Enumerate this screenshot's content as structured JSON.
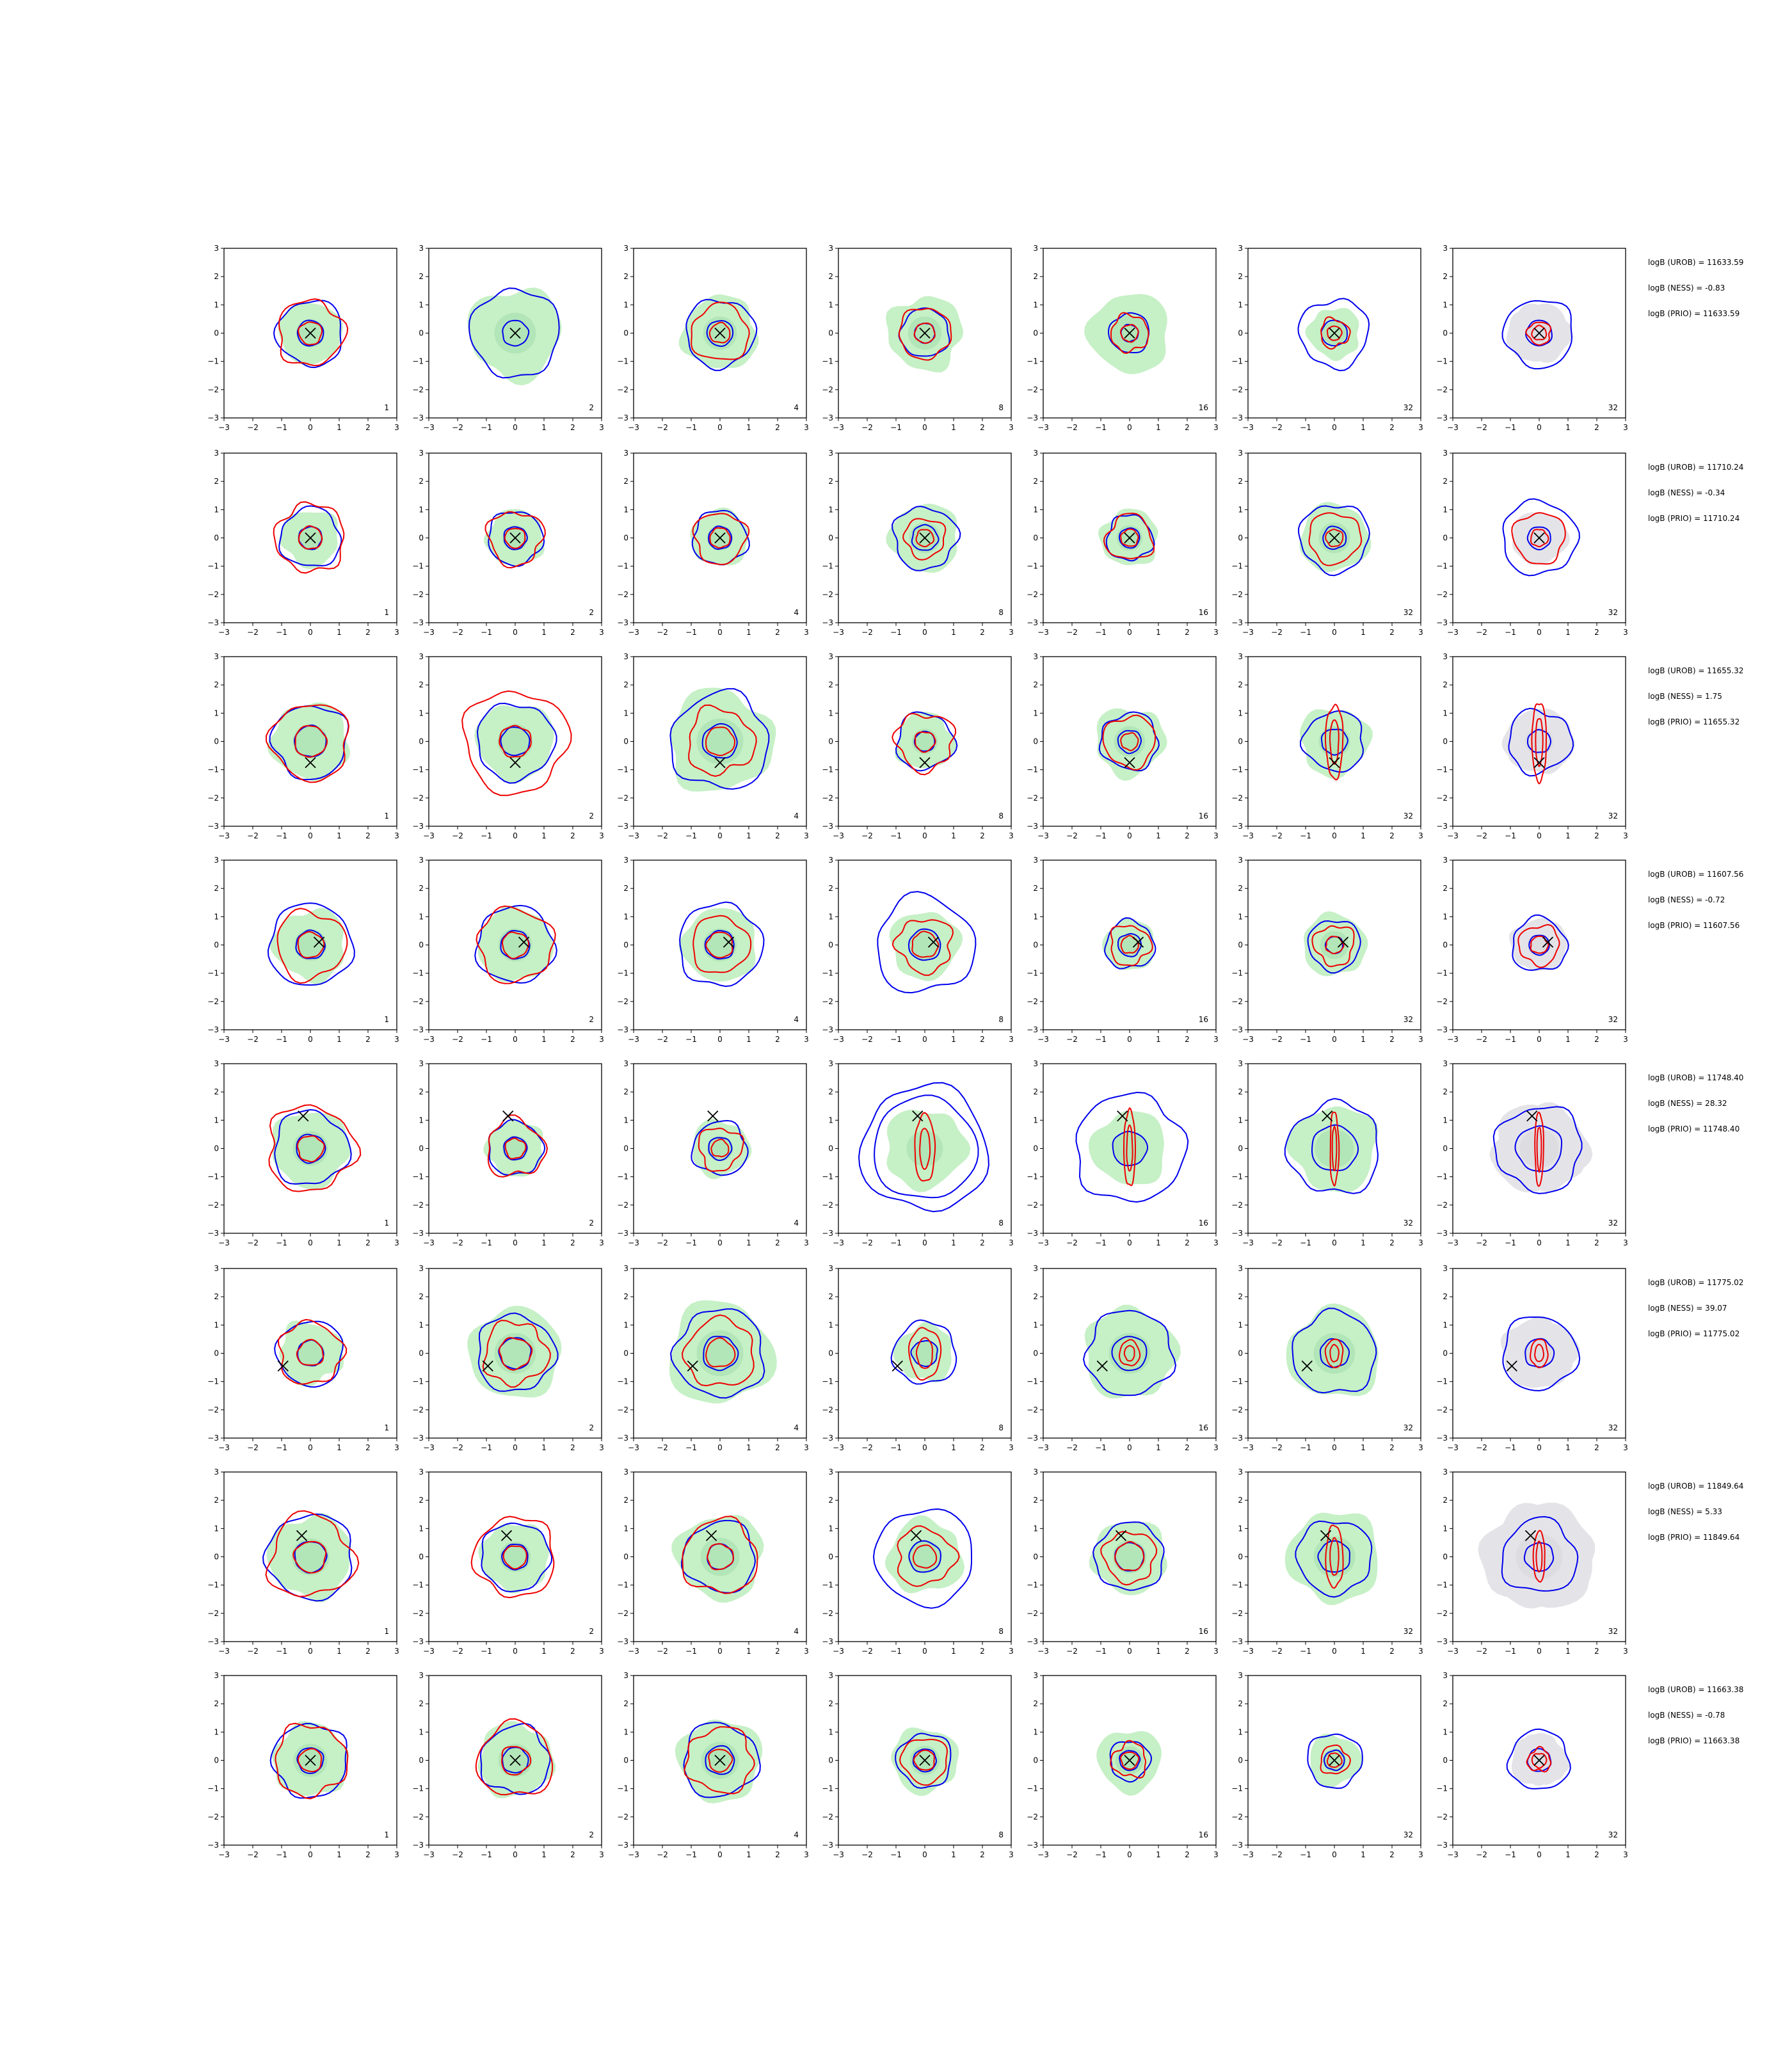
{
  "chart_data": {
    "type": "contour-grid",
    "rows": 8,
    "cols": 7,
    "xlim": [
      -3,
      3
    ],
    "ylim": [
      -3,
      3
    ],
    "xticks": [
      -3,
      -2,
      -1,
      0,
      1,
      2,
      3
    ],
    "yticks": [
      -3,
      -2,
      -1,
      0,
      1,
      2,
      3
    ],
    "column_labels": [
      "1",
      "2",
      "4",
      "8",
      "16",
      "32",
      "32"
    ],
    "colors": {
      "fill_green": "#c6f0c6",
      "fill_green_dark": "#a9dfb0",
      "fill_grey": "#e4e4e8",
      "line_blue": "#0000ee",
      "line_red": "#ee0000",
      "marker": "#000000",
      "axes": "#000000"
    },
    "rows_data": [
      {
        "annotations": [
          "logB (UROB) = 11633.59",
          "logB (NESS) = -0.83",
          "logB (PRIO) = 11633.59"
        ],
        "marker": [
          0,
          0
        ],
        "panels": [
          {
            "fill": 1.1,
            "blue": [
              1.15,
              0.45
            ],
            "red": [
              1.15,
              0.4
            ]
          },
          {
            "fill": 1.6,
            "blue": [
              1.55,
              0.45
            ],
            "red": []
          },
          {
            "fill": 1.3,
            "blue": [
              1.2,
              0.45
            ],
            "red": [
              1.0,
              0.35
            ]
          },
          {
            "fill": 1.3,
            "blue": [
              0.85,
              0.35
            ],
            "red": [
              0.9,
              0.35
            ]
          },
          {
            "fill": 1.4,
            "blue": [
              0.7,
              0.3
            ],
            "red": [
              0.65,
              0.3
            ]
          },
          {
            "fill": 0.9,
            "blue": [
              1.2,
              0.45
            ],
            "red": [
              0.5,
              0.25
            ]
          },
          {
            "fill": 1.0,
            "blue": [
              1.2,
              0.45
            ],
            "red": [
              0.4,
              0.25
            ],
            "grey": true
          }
        ]
      },
      {
        "annotations": [
          "logB (UROB) = 11710.24",
          "logB (NESS) = -0.34",
          "logB (PRIO) = 11710.24"
        ],
        "marker": [
          0,
          0
        ],
        "panels": [
          {
            "fill": 1.0,
            "blue": [
              1.05,
              0.4
            ],
            "red": [
              1.2,
              0.4
            ]
          },
          {
            "fill": 1.0,
            "blue": [
              0.95,
              0.4
            ],
            "red": [
              0.95,
              0.35
            ]
          },
          {
            "fill": 1.0,
            "blue": [
              0.95,
              0.4
            ],
            "red": [
              0.9,
              0.35
            ]
          },
          {
            "fill": 1.2,
            "blue": [
              1.1,
              0.45
            ],
            "red": [
              0.7,
              0.3
            ]
          },
          {
            "fill": 1.0,
            "blue": [
              0.8,
              0.35
            ],
            "red": [
              0.8,
              0.3
            ]
          },
          {
            "fill": 1.2,
            "blue": [
              1.2,
              0.4
            ],
            "red": [
              0.9,
              0.3
            ]
          },
          {
            "fill": 0.9,
            "blue": [
              1.3,
              0.4
            ],
            "red": [
              0.9,
              0.3
            ],
            "grey": true
          }
        ]
      },
      {
        "annotations": [
          "logB (UROB) = 11655.32",
          "logB (NESS) = 1.75",
          "logB (PRIO) = 11655.32"
        ],
        "marker": [
          0,
          -0.75
        ],
        "panels": [
          {
            "fill": 1.35,
            "blue": [
              1.3,
              0.55
            ],
            "red": [
              1.35,
              0.55
            ]
          },
          {
            "fill": 1.35,
            "blue": [
              1.35,
              0.5
            ],
            "red": [
              1.8,
              0.55
            ]
          },
          {
            "fill": 1.8,
            "blue": [
              1.7,
              0.6
            ],
            "red": [
              1.15,
              0.5
            ]
          },
          {
            "fill": 1.0,
            "blue": [
              1.0,
              0.35
            ],
            "red": [
              1.0,
              0.35
            ]
          },
          {
            "fill": 1.2,
            "blue": [
              1.0,
              0.4
            ],
            "red": [
              0.9,
              0.3
            ]
          },
          {
            "fill": 1.2,
            "blue": [
              1.05,
              0.45
            ],
            "red": [
              0.3,
              1.3
            ]
          },
          {
            "fill": 1.1,
            "blue": [
              1.1,
              0.4
            ],
            "red": [
              0.25,
              1.4
            ],
            "grey": true
          }
        ]
      },
      {
        "annotations": [
          "logB (UROB) = 11607.56",
          "logB (NESS) = -0.72",
          "logB (PRIO) = 11607.56"
        ],
        "marker": [
          0.3,
          0.1
        ],
        "panels": [
          {
            "fill": 1.25,
            "blue": [
              1.45,
              0.5
            ],
            "red": [
              1.2,
              0.45
            ]
          },
          {
            "fill": 1.3,
            "blue": [
              1.35,
              0.5
            ],
            "red": [
              1.3,
              0.45
            ]
          },
          {
            "fill": 1.3,
            "blue": [
              1.45,
              0.5
            ],
            "red": [
              1.0,
              0.45
            ]
          },
          {
            "fill": 1.2,
            "blue": [
              1.7,
              0.55
            ],
            "red": [
              0.95,
              0.45
            ]
          },
          {
            "fill": 0.9,
            "blue": [
              0.85,
              0.4
            ],
            "red": [
              0.7,
              0.3
            ]
          },
          {
            "fill": 1.1,
            "blue": [
              0.9,
              0.3
            ],
            "red": [
              0.7,
              0.3
            ]
          },
          {
            "fill": 0.9,
            "blue": [
              0.95,
              0.35
            ],
            "red": [
              0.7,
              0.3
            ],
            "grey": true
          }
        ]
      },
      {
        "annotations": [
          "logB (UROB) = 11748.40",
          "logB (NESS) = 28.32",
          "logB (PRIO) = 11748.40"
        ],
        "marker": [
          -0.25,
          1.15
        ],
        "panels": [
          {
            "fill": 1.35,
            "blue": [
              1.3,
              0.5
            ],
            "red": [
              1.5,
              0.45
            ]
          },
          {
            "fill": 1.0,
            "blue": [
              0.95,
              0.4
            ],
            "red": [
              1.0,
              0.35
            ]
          },
          {
            "fill": 1.0,
            "blue": [
              0.95,
              0.4
            ],
            "red": [
              0.75,
              0.3
            ]
          },
          {
            "fill": 1.4,
            "blue": [
              2.2,
              1.8
            ],
            "red": [
              0.35,
              1.2
            ]
          },
          {
            "fill": 1.3,
            "blue": [
              1.9,
              0.6
            ],
            "red": [
              0.2,
              1.35
            ]
          },
          {
            "fill": 1.5,
            "blue": [
              1.6,
              0.8
            ],
            "red": [
              0.15,
              1.3
            ]
          },
          {
            "fill": 1.5,
            "blue": [
              1.5,
              0.8
            ],
            "red": [
              0.15,
              1.3
            ],
            "grey": true
          }
        ]
      },
      {
        "annotations": [
          "logB (UROB) = 11775.02",
          "logB (NESS) = 39.07",
          "logB (PRIO) = 11775.02"
        ],
        "marker": [
          -0.95,
          -0.45
        ],
        "panels": [
          {
            "fill": 1.1,
            "blue": [
              1.15,
              0.45
            ],
            "red": [
              1.1,
              0.45
            ]
          },
          {
            "fill": 1.6,
            "blue": [
              1.35,
              0.55
            ],
            "red": [
              1.1,
              0.55
            ]
          },
          {
            "fill": 1.8,
            "blue": [
              1.55,
              0.6
            ],
            "red": [
              1.2,
              0.5
            ]
          },
          {
            "fill": 1.0,
            "blue": [
              1.1,
              0.45
            ],
            "red": [
              0.55,
              0.9
            ]
          },
          {
            "fill": 1.6,
            "blue": [
              1.5,
              0.6
            ],
            "red": [
              0.35,
              0.45
            ]
          },
          {
            "fill": 1.6,
            "blue": [
              1.45,
              0.5
            ],
            "red": [
              0.3,
              0.5
            ]
          },
          {
            "fill": 1.2,
            "blue": [
              1.3,
              0.5
            ],
            "red": [
              0.3,
              0.5
            ],
            "grey": true
          }
        ]
      },
      {
        "annotations": [
          "logB (UROB) = 11849.64",
          "logB (NESS) = 5.33",
          "logB (PRIO) = 11849.64"
        ],
        "marker": [
          -0.3,
          0.75
        ],
        "panels": [
          {
            "fill": 1.45,
            "blue": [
              1.5,
              0.55
            ],
            "red": [
              1.45,
              0.55
            ]
          },
          {
            "fill": 1.2,
            "blue": [
              1.2,
              0.45
            ],
            "red": [
              1.4,
              0.4
            ]
          },
          {
            "fill": 1.5,
            "blue": [
              1.25,
              0.45
            ],
            "red": [
              1.3,
              0.45
            ]
          },
          {
            "fill": 1.3,
            "blue": [
              1.7,
              0.55
            ],
            "red": [
              1.0,
              0.4
            ]
          },
          {
            "fill": 1.3,
            "blue": [
              1.2,
              0.5
            ],
            "red": [
              0.9,
              0.5
            ]
          },
          {
            "fill": 1.6,
            "blue": [
              1.3,
              0.55
            ],
            "red": [
              0.3,
              1.1
            ]
          },
          {
            "fill": 1.8,
            "blue": [
              1.3,
              0.5
            ],
            "red": [
              0.2,
              0.9
            ],
            "grey": true
          }
        ]
      },
      {
        "annotations": [
          "logB (UROB) = 11663.38",
          "logB (NESS) = -0.78",
          "logB (PRIO) = 11663.38"
        ],
        "marker": [
          0,
          0
        ],
        "panels": [
          {
            "fill": 1.3,
            "blue": [
              1.3,
              0.45
            ],
            "red": [
              1.25,
              0.4
            ]
          },
          {
            "fill": 1.3,
            "blue": [
              1.2,
              0.45
            ],
            "red": [
              1.3,
              0.5
            ]
          },
          {
            "fill": 1.45,
            "blue": [
              1.3,
              0.5
            ],
            "red": [
              1.15,
              0.4
            ]
          },
          {
            "fill": 1.15,
            "blue": [
              0.95,
              0.4
            ],
            "red": [
              0.8,
              0.35
            ]
          },
          {
            "fill": 1.1,
            "blue": [
              0.7,
              0.35
            ],
            "red": [
              0.6,
              0.3
            ]
          },
          {
            "fill": 0.9,
            "blue": [
              0.95,
              0.35
            ],
            "red": [
              0.5,
              0.25
            ]
          },
          {
            "fill": 0.9,
            "blue": [
              1.05,
              0.4
            ],
            "red": [
              0.4,
              0.25
            ],
            "grey": true
          }
        ]
      }
    ]
  }
}
